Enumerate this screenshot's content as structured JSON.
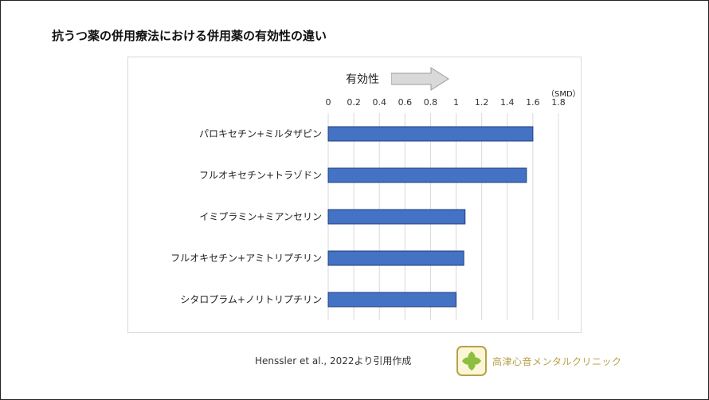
{
  "slide": {
    "title": "抗うつ薬の併用療法における併用薬の有効性の違い",
    "citation": "Henssler et al., 2022より引用作成",
    "logo_text": "高津心音メンタルクリニック"
  },
  "chart_data": {
    "type": "bar",
    "orientation": "horizontal",
    "title": "",
    "unit": "（SMD）",
    "direction_label": "有効性",
    "categories": [
      "パロキセチン+ミルタザピン",
      "フルオキセチン+トラゾドン",
      "イミプラミン+ミアンセリン",
      "フルオキセチン+アミトリプチリン",
      "シタロプラム+ノリトリプチリン"
    ],
    "values": [
      1.6,
      1.55,
      1.07,
      1.06,
      1.0
    ],
    "xlim": [
      0,
      1.8
    ],
    "xticks": [
      "0",
      "0.2",
      "0.4",
      "0.6",
      "0.8",
      "1",
      "1.2",
      "1.4",
      "1.6",
      "1.8"
    ],
    "grid": true,
    "legend": "none",
    "colors": {
      "bar_fill": "#4472c4",
      "bar_stroke": "#1f3f7a",
      "grid": "#d9d9d9",
      "arrow": "#d9d9d9"
    }
  }
}
